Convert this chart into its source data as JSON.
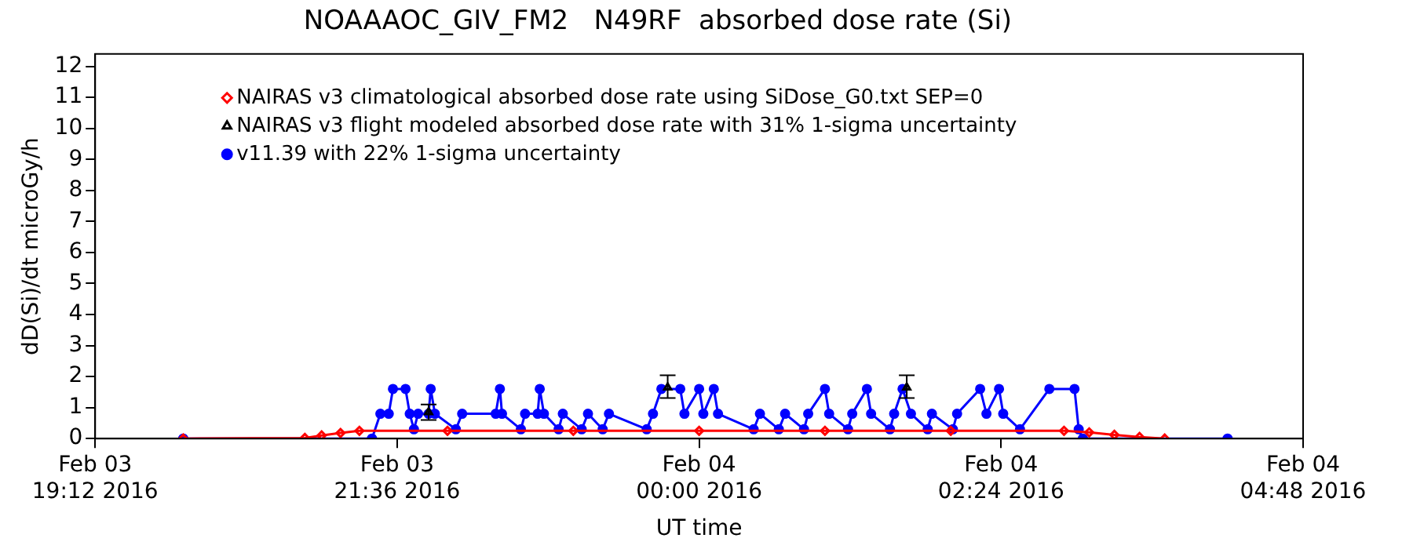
{
  "chart_data": {
    "type": "line",
    "title": "NOAAAOC_GIV_FM2   N49RF  absorbed dose rate (Si)",
    "xlabel": "UT time",
    "ylabel": "dD(Si)/dt microGy/h",
    "xlim": [
      "2016-02-03T19:12",
      "2016-02-04T04:48"
    ],
    "xticks": [
      {
        "value": "2016-02-03T19:12",
        "label": "Feb 03\n19:12 2016"
      },
      {
        "value": "2016-02-03T21:36",
        "label": "Feb 03\n21:36 2016"
      },
      {
        "value": "2016-02-04T00:00",
        "label": "Feb 04\n00:00 2016"
      },
      {
        "value": "2016-02-04T02:24",
        "label": "Feb 04\n02:24 2016"
      },
      {
        "value": "2016-02-04T04:48",
        "label": "Feb 04\n04:48 2016"
      }
    ],
    "ylim": [
      0,
      12.4
    ],
    "yticks": [
      0,
      1,
      2,
      3,
      4,
      5,
      6,
      7,
      8,
      9,
      10,
      11,
      12
    ],
    "grid": false,
    "legend": "top left",
    "series": [
      {
        "name": "NAIRAS v3 climatological absorbed dose rate using SiDose_G0.txt SEP=0",
        "color": "#ff0000",
        "marker": "diamond",
        "x": [
          "2016-02-03T19:54",
          "2016-02-03T20:52",
          "2016-02-03T21:00",
          "2016-02-03T21:09",
          "2016-02-03T21:18",
          "2016-02-03T22:00",
          "2016-02-03T23:00",
          "2016-02-04T00:00",
          "2016-02-04T01:00",
          "2016-02-04T02:00",
          "2016-02-04T02:54",
          "2016-02-04T03:06",
          "2016-02-04T03:18",
          "2016-02-04T03:30",
          "2016-02-04T03:42"
        ],
        "values": [
          0,
          0.02,
          0.1,
          0.18,
          0.25,
          0.25,
          0.25,
          0.25,
          0.25,
          0.25,
          0.25,
          0.2,
          0.12,
          0.05,
          0
        ]
      },
      {
        "name": "NAIRAS v3 flight modeled absorbed dose rate with 31% 1-sigma uncertainty",
        "color": "#000000",
        "marker": "triangle",
        "type": "scatter",
        "x": [
          "2016-02-03T21:51",
          "2016-02-03T23:45",
          "2016-02-04T01:39"
        ],
        "values": [
          0.85,
          1.65,
          1.65
        ],
        "errors": [
          [
            0.6,
            1.1
          ],
          [
            1.31,
            2.04
          ],
          [
            1.31,
            2.04
          ]
        ]
      },
      {
        "name": "v11.39 with 22% 1-sigma uncertainty",
        "color": "#0000ff",
        "marker": "circle",
        "x": [
          "2016-02-03T19:54",
          "2016-02-03T21:24",
          "2016-02-03T21:28",
          "2016-02-03T21:32",
          "2016-02-03T21:34",
          "2016-02-03T21:40",
          "2016-02-03T21:42",
          "2016-02-03T21:44",
          "2016-02-03T21:46",
          "2016-02-03T21:51",
          "2016-02-03T21:52",
          "2016-02-03T21:54",
          "2016-02-03T22:04",
          "2016-02-03T22:07",
          "2016-02-03T22:23",
          "2016-02-03T22:25",
          "2016-02-03T22:26",
          "2016-02-03T22:35",
          "2016-02-03T22:37",
          "2016-02-03T22:43",
          "2016-02-03T22:44",
          "2016-02-03T22:46",
          "2016-02-03T22:53",
          "2016-02-03T22:55",
          "2016-02-03T23:04",
          "2016-02-03T23:07",
          "2016-02-03T23:14",
          "2016-02-03T23:17",
          "2016-02-03T23:35",
          "2016-02-03T23:38",
          "2016-02-03T23:42",
          "2016-02-03T23:51",
          "2016-02-03T23:53",
          "2016-02-04T00:00",
          "2016-02-04T00:02",
          "2016-02-04T00:07",
          "2016-02-04T00:09",
          "2016-02-04T00:26",
          "2016-02-04T00:29",
          "2016-02-04T00:38",
          "2016-02-04T00:41",
          "2016-02-04T00:50",
          "2016-02-04T00:52",
          "2016-02-04T01:00",
          "2016-02-04T01:02",
          "2016-02-04T01:11",
          "2016-02-04T01:13",
          "2016-02-04T01:20",
          "2016-02-04T01:22",
          "2016-02-04T01:31",
          "2016-02-04T01:33",
          "2016-02-04T01:37",
          "2016-02-04T01:41",
          "2016-02-04T01:49",
          "2016-02-04T01:51",
          "2016-02-04T02:01",
          "2016-02-04T02:03",
          "2016-02-04T02:14",
          "2016-02-04T02:17",
          "2016-02-04T02:23",
          "2016-02-04T02:25",
          "2016-02-04T02:33",
          "2016-02-04T02:47",
          "2016-02-04T02:59",
          "2016-02-04T03:01",
          "2016-02-04T03:03",
          "2016-02-04T04:12"
        ],
        "values": [
          0,
          0,
          0.8,
          0.8,
          1.6,
          1.6,
          0.8,
          0.3,
          0.8,
          0.8,
          1.6,
          0.8,
          0.3,
          0.8,
          0.8,
          1.6,
          0.8,
          0.3,
          0.8,
          0.8,
          1.6,
          0.8,
          0.3,
          0.8,
          0.3,
          0.8,
          0.3,
          0.8,
          0.3,
          0.8,
          1.6,
          1.6,
          0.8,
          1.6,
          0.8,
          1.6,
          0.8,
          0.3,
          0.8,
          0.3,
          0.8,
          0.3,
          0.8,
          1.6,
          0.8,
          0.3,
          0.8,
          1.6,
          0.8,
          0.3,
          0.8,
          1.6,
          0.8,
          0.3,
          0.8,
          0.3,
          0.8,
          1.6,
          0.8,
          1.6,
          0.8,
          0.3,
          1.6,
          1.6,
          0.3,
          0,
          0
        ]
      }
    ]
  }
}
